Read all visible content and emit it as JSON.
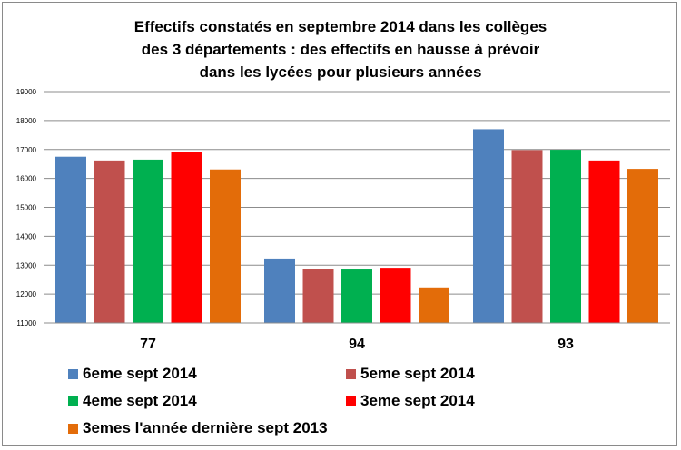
{
  "chart_data": {
    "type": "bar",
    "title_lines": [
      "Effectifs constatés en septembre 2014 dans les collèges",
      "des 3 départements : des effectifs  en hausse à prévoir",
      "dans les lycées pour plusieurs années"
    ],
    "categories": [
      "77",
      "94",
      "93"
    ],
    "series": [
      {
        "name": "6eme sept 2014",
        "color": "#4f81bd",
        "values": [
          16750,
          13230,
          17700
        ]
      },
      {
        "name": "5eme sept 2014",
        "color": "#c0504d",
        "values": [
          16620,
          12880,
          16980
        ]
      },
      {
        "name": "4eme sept 2014",
        "color": "#00b050",
        "values": [
          16650,
          12850,
          16990
        ]
      },
      {
        "name": "3eme sept 2014",
        "color": "#ff0000",
        "values": [
          16920,
          12910,
          16620
        ]
      },
      {
        "name": "3emes l'année dernière sept 2013",
        "color": "#e36c09",
        "values": [
          16310,
          12230,
          16330
        ]
      }
    ],
    "ylim": [
      11000,
      19000
    ],
    "yticks": [
      "11000",
      "12000",
      "13000",
      "14000",
      "15000",
      "16000",
      "17000",
      "18000",
      "19000"
    ],
    "grid": true,
    "legend_position": "bottom"
  }
}
